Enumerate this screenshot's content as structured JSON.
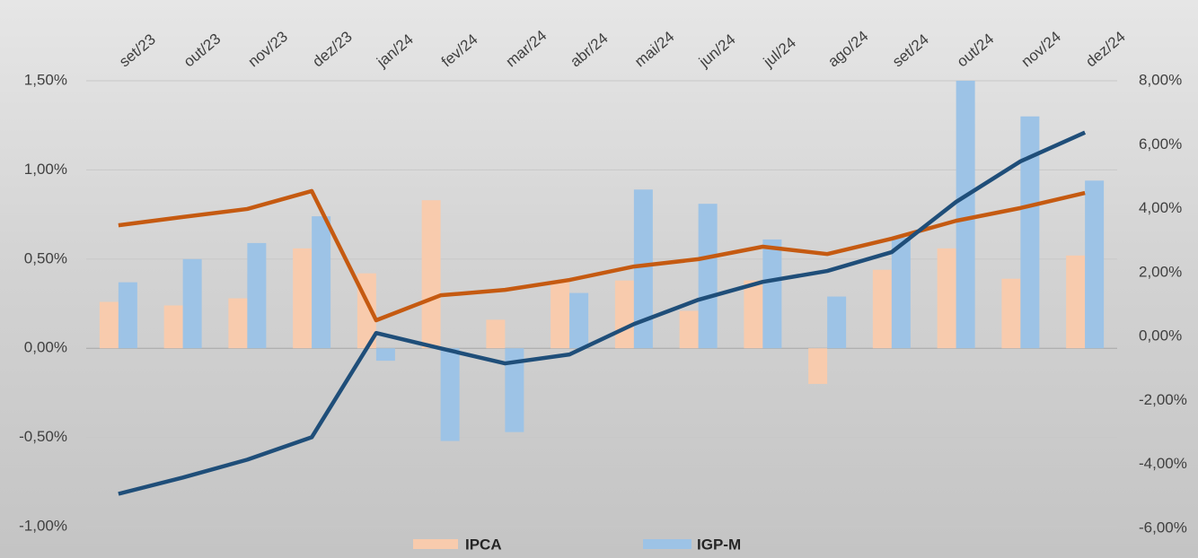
{
  "chart_data": {
    "type": "bar-line",
    "categories": [
      "set/23",
      "out/23",
      "nov/23",
      "dez/23",
      "jan/24",
      "fev/24",
      "mar/24",
      "abr/24",
      "mai/24",
      "jun/24",
      "jul/24",
      "ago/24",
      "set/24",
      "out/24",
      "nov/24",
      "dez/24"
    ],
    "series": [
      {
        "name": "IPCA",
        "color": "#f8cbad",
        "values": [
          0.26,
          0.24,
          0.28,
          0.56,
          0.42,
          0.83,
          0.16,
          0.38,
          0.38,
          0.21,
          0.38,
          -0.2,
          0.44,
          0.56,
          0.39,
          0.52
        ]
      },
      {
        "name": "IGP-M",
        "color": "#9dc3e6",
        "values": [
          0.37,
          0.5,
          0.59,
          0.74,
          -0.07,
          -0.52,
          -0.47,
          0.31,
          0.89,
          0.81,
          0.61,
          0.29,
          0.62,
          1.5,
          1.3,
          0.94
        ]
      }
    ],
    "lines": [
      {
        "color": "#c55a11",
        "axis": "y2",
        "values": [
          3.48,
          3.74,
          3.99,
          4.55,
          0.51,
          1.29,
          1.46,
          1.77,
          2.19,
          2.42,
          2.81,
          2.58,
          3.06,
          3.62,
          4.02,
          4.49
        ]
      },
      {
        "color": "#1f4e79",
        "axis": "y2",
        "values": [
          -4.92,
          -4.41,
          -3.85,
          -3.15,
          0.11,
          -0.37,
          -0.84,
          -0.56,
          0.39,
          1.15,
          1.71,
          2.05,
          2.64,
          4.21,
          5.48,
          6.38
        ]
      }
    ],
    "ylim": [
      -1,
      1.5
    ],
    "yticks": [
      {
        "value": -1,
        "label": "-1,00%"
      },
      {
        "value": -0.5,
        "label": "-0,50%"
      },
      {
        "value": 0,
        "label": "0,00%"
      },
      {
        "value": 0.5,
        "label": "0,50%"
      },
      {
        "value": 1,
        "label": "1,00%"
      },
      {
        "value": 1.5,
        "label": "1,50%"
      }
    ],
    "y2lim": [
      -6,
      8
    ],
    "y2ticks": [
      {
        "value": -6,
        "label": "-6,00%"
      },
      {
        "value": -4,
        "label": "-4,00%"
      },
      {
        "value": -2,
        "label": "-2,00%"
      },
      {
        "value": 0,
        "label": "0,00%"
      },
      {
        "value": 2,
        "label": "2,00%"
      },
      {
        "value": 4,
        "label": "4,00%"
      },
      {
        "value": 6,
        "label": "6,00%"
      },
      {
        "value": 8,
        "label": "8,00%"
      }
    ],
    "grid": true,
    "legend": "bottom"
  }
}
